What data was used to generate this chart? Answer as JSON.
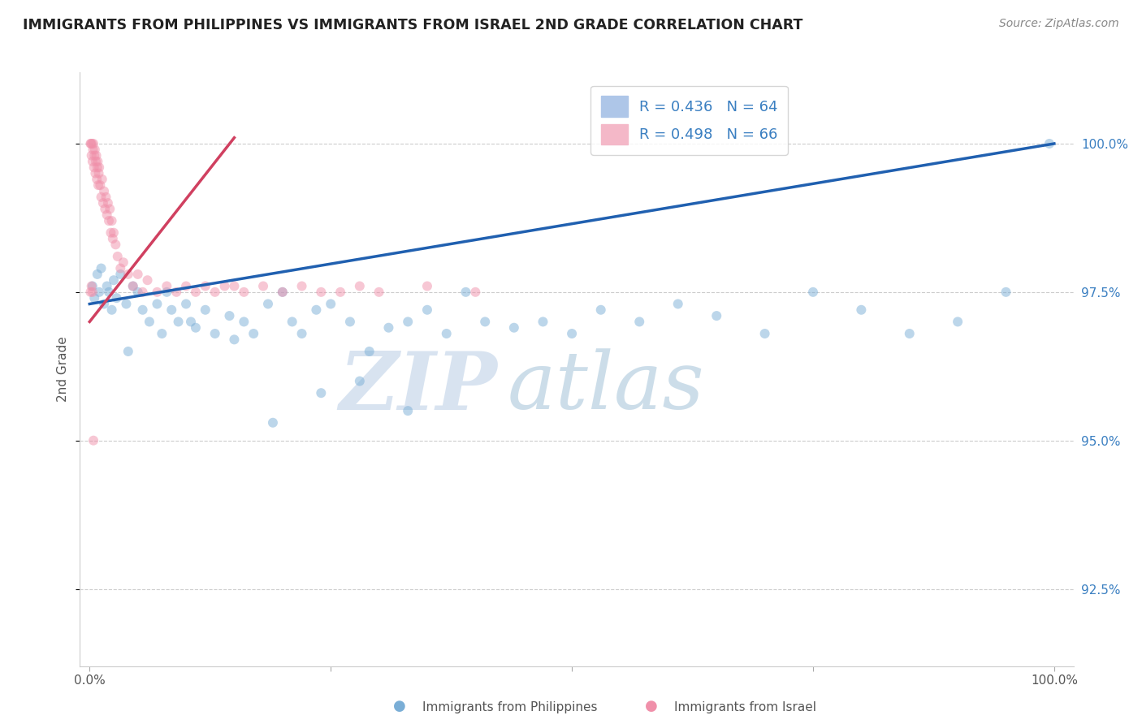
{
  "title": "IMMIGRANTS FROM PHILIPPINES VS IMMIGRANTS FROM ISRAEL 2ND GRADE CORRELATION CHART",
  "source": "Source: ZipAtlas.com",
  "ylabel": "2nd Grade",
  "ylim": [
    91.2,
    101.2
  ],
  "xlim": [
    -1.0,
    102.0
  ],
  "legend_blue_label": "R = 0.436   N = 64",
  "legend_pink_label": "R = 0.498   N = 66",
  "legend_blue_color": "#aec6e8",
  "legend_pink_color": "#f4b8c8",
  "blue_dot_color": "#7aaed6",
  "pink_dot_color": "#f090aa",
  "blue_line_color": "#2060b0",
  "pink_line_color": "#d04060",
  "footer_blue_label": "Immigrants from Philippines",
  "footer_pink_label": "Immigrants from Israel",
  "blue_scatter_x": [
    0.3,
    0.5,
    0.8,
    1.0,
    1.2,
    1.5,
    1.8,
    2.0,
    2.3,
    2.5,
    2.8,
    3.2,
    3.8,
    4.5,
    5.0,
    5.5,
    6.2,
    7.0,
    8.0,
    8.5,
    9.2,
    10.0,
    11.0,
    12.0,
    13.0,
    14.5,
    16.0,
    17.0,
    18.5,
    20.0,
    21.0,
    22.0,
    23.5,
    25.0,
    27.0,
    29.0,
    31.0,
    33.0,
    35.0,
    37.0,
    39.0,
    41.0,
    44.0,
    47.0,
    50.0,
    53.0,
    57.0,
    61.0,
    65.0,
    70.0,
    75.0,
    80.0,
    85.0,
    90.0,
    95.0,
    99.5,
    4.0,
    7.5,
    10.5,
    15.0,
    19.0,
    24.0,
    28.0,
    33.0
  ],
  "blue_scatter_y": [
    97.6,
    97.4,
    97.8,
    97.5,
    97.9,
    97.3,
    97.6,
    97.5,
    97.2,
    97.7,
    97.4,
    97.8,
    97.3,
    97.6,
    97.5,
    97.2,
    97.0,
    97.3,
    97.5,
    97.2,
    97.0,
    97.3,
    96.9,
    97.2,
    96.8,
    97.1,
    97.0,
    96.8,
    97.3,
    97.5,
    97.0,
    96.8,
    97.2,
    97.3,
    97.0,
    96.5,
    96.9,
    97.0,
    97.2,
    96.8,
    97.5,
    97.0,
    96.9,
    97.0,
    96.8,
    97.2,
    97.0,
    97.3,
    97.1,
    96.8,
    97.5,
    97.2,
    96.8,
    97.0,
    97.5,
    100.0,
    96.5,
    96.8,
    97.0,
    96.7,
    95.3,
    95.8,
    96.0,
    95.5
  ],
  "pink_scatter_x": [
    0.1,
    0.15,
    0.2,
    0.25,
    0.3,
    0.35,
    0.4,
    0.45,
    0.5,
    0.55,
    0.6,
    0.65,
    0.7,
    0.75,
    0.8,
    0.85,
    0.9,
    0.95,
    1.0,
    1.1,
    1.2,
    1.3,
    1.4,
    1.5,
    1.6,
    1.7,
    1.8,
    1.9,
    2.0,
    2.1,
    2.2,
    2.3,
    2.4,
    2.5,
    2.7,
    2.9,
    3.2,
    3.5,
    4.0,
    4.5,
    5.0,
    5.5,
    6.0,
    7.0,
    8.0,
    9.0,
    10.0,
    11.0,
    12.0,
    13.0,
    14.0,
    15.0,
    16.0,
    18.0,
    20.0,
    22.0,
    24.0,
    26.0,
    28.0,
    30.0,
    35.0,
    40.0,
    0.1,
    0.2,
    0.3,
    0.4
  ],
  "pink_scatter_y": [
    100.0,
    100.0,
    99.8,
    100.0,
    99.7,
    99.9,
    100.0,
    99.6,
    99.8,
    99.9,
    99.5,
    99.7,
    99.8,
    99.4,
    99.6,
    99.7,
    99.3,
    99.5,
    99.6,
    99.3,
    99.1,
    99.4,
    99.0,
    99.2,
    98.9,
    99.1,
    98.8,
    99.0,
    98.7,
    98.9,
    98.5,
    98.7,
    98.4,
    98.5,
    98.3,
    98.1,
    97.9,
    98.0,
    97.8,
    97.6,
    97.8,
    97.5,
    97.7,
    97.5,
    97.6,
    97.5,
    97.6,
    97.5,
    97.6,
    97.5,
    97.6,
    97.6,
    97.5,
    97.6,
    97.5,
    97.6,
    97.5,
    97.5,
    97.6,
    97.5,
    97.6,
    97.5,
    97.5,
    97.6,
    97.5,
    95.0
  ],
  "blue_line_x": [
    0.0,
    100.0
  ],
  "blue_line_y": [
    97.3,
    100.0
  ],
  "pink_line_x": [
    0.0,
    15.0
  ],
  "pink_line_y": [
    97.0,
    100.1
  ],
  "watermark_zip": "ZIP",
  "watermark_atlas": "atlas",
  "background_color": "#ffffff",
  "grid_color": "#cccccc",
  "dot_size": 75,
  "dot_alpha": 0.5,
  "right_y_ticks": [
    92.5,
    95.0,
    97.5,
    100.0
  ],
  "right_y_ticklabels": [
    "92.5%",
    "95.0%",
    "97.5%",
    "100.0%"
  ]
}
